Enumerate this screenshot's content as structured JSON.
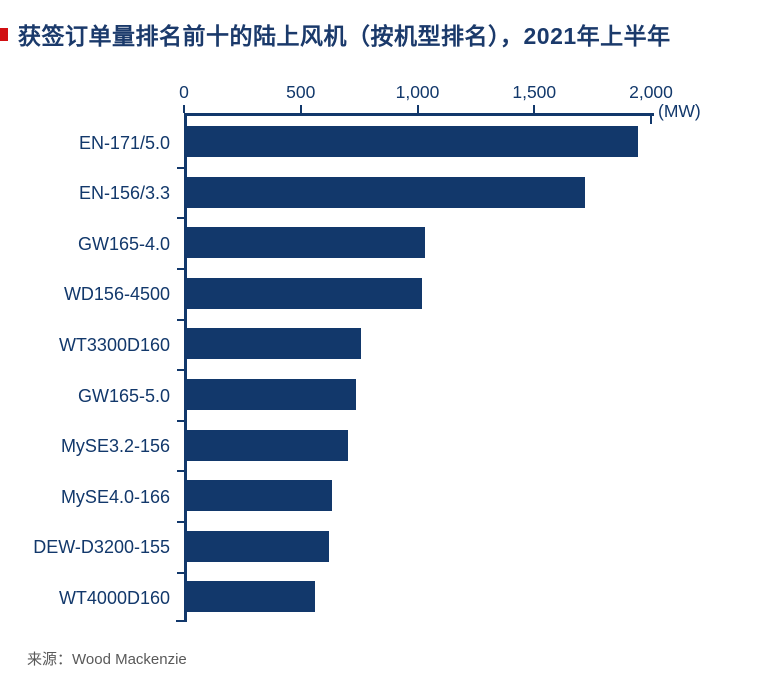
{
  "title": {
    "text": "获签订单量排名前十的陆上风机（按机型排名），2021年上半年",
    "color": "#1b3a6b",
    "accent_mark_color": "#d10f12"
  },
  "source": {
    "label": "来源：Wood Mackenzie",
    "color": "#595959"
  },
  "colors": {
    "navy": "#12386b",
    "background": "#ffffff"
  },
  "chart_data": {
    "type": "bar",
    "orientation": "horizontal",
    "title": "获签订单量排名前十的陆上风机（按机型排名），2021年上半年",
    "categories": [
      "EN-171/5.0",
      "EN-156/3.3",
      "GW165-4.0",
      "WD156-4500",
      "WT3300D160",
      "GW165-5.0",
      "MySE3.2-156",
      "MySE4.0-166",
      "DEW-D3200-155",
      "WT4000D160"
    ],
    "values": [
      1930,
      1705,
      1020,
      1005,
      745,
      725,
      690,
      620,
      610,
      550
    ],
    "unit_label": "(MW)",
    "xlabel": "",
    "ylabel": "",
    "xlim": [
      0,
      2000
    ],
    "x_ticks": [
      0,
      500,
      1000,
      1500,
      2000
    ],
    "x_tick_labels": [
      "0",
      "500",
      "1,000",
      "1,500",
      "2,000"
    ],
    "bar_color": "#12386b",
    "axis_color": "#12386b",
    "grid": false,
    "legend": "none",
    "source": "Wood Mackenzie"
  }
}
